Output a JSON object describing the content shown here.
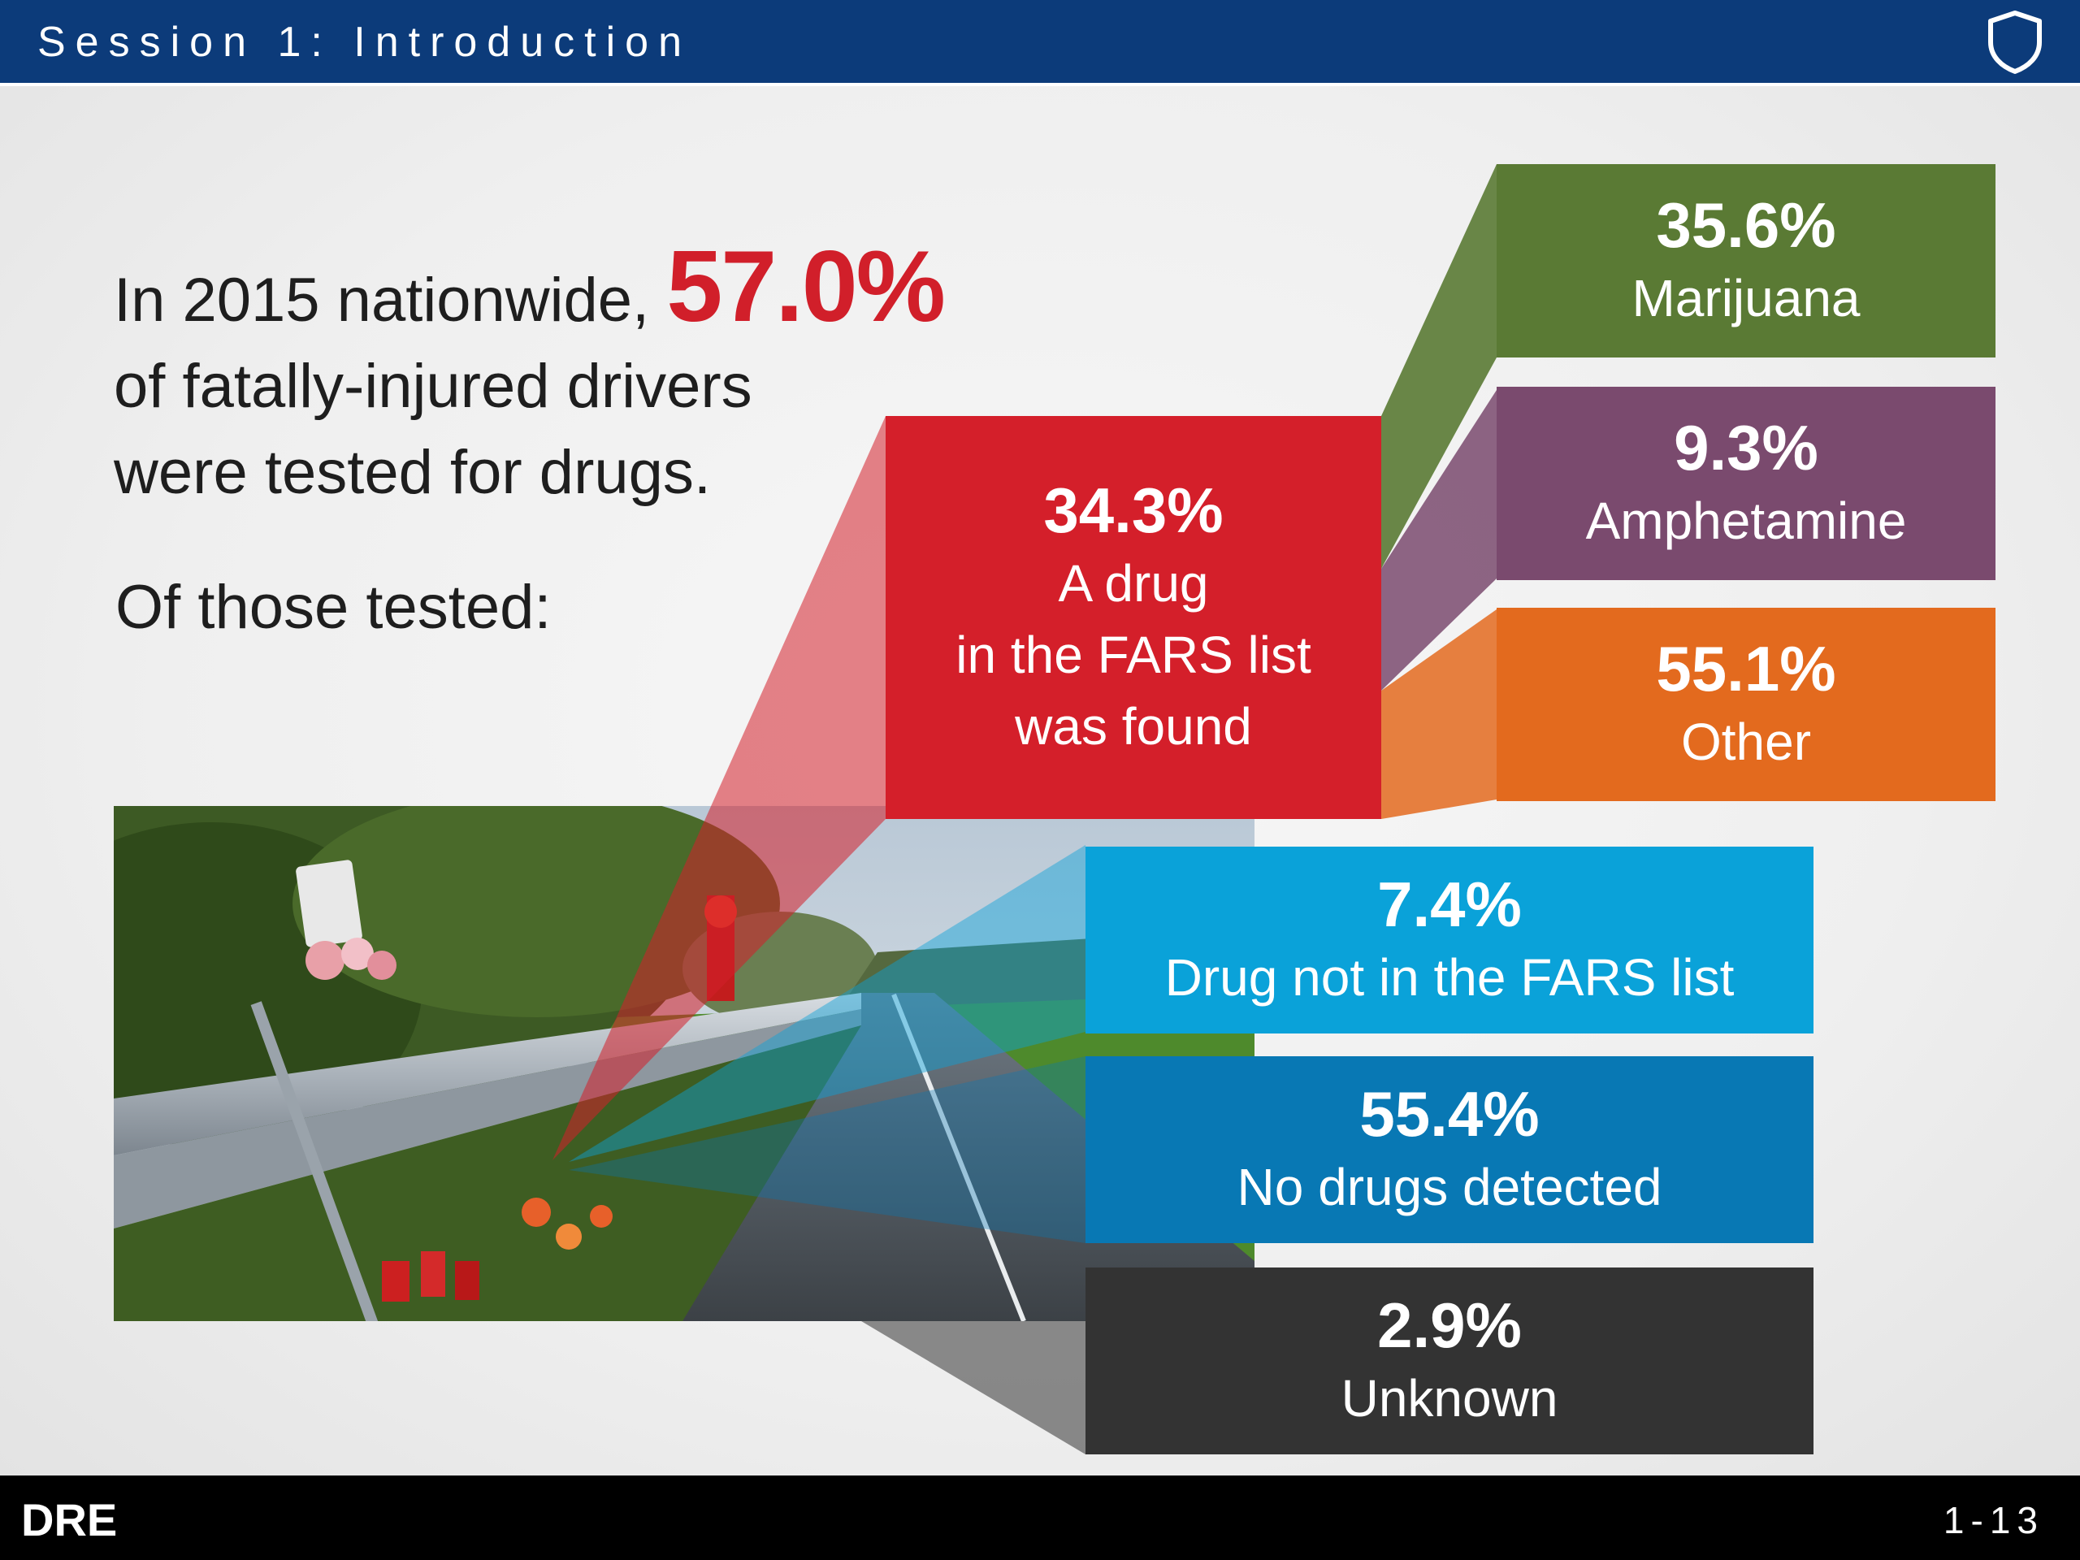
{
  "header": {
    "title": "Session 1: Introduction",
    "icon": "shield-icon"
  },
  "intro": {
    "line1_prefix": "In 2015 nationwide,",
    "highlight": "57.0%",
    "line2": "of fatally-injured drivers",
    "line3": "were tested for drugs.",
    "subhead": "Of those tested:"
  },
  "colors": {
    "red": "#d41f2a",
    "green": "#5a7a34",
    "purple": "#7a4a6e",
    "orange": "#e36a1e",
    "light_blue": "#0aa2d9",
    "blue": "#0878b4",
    "dark": "#333333",
    "header": "#0c3b7a"
  },
  "breakdown": {
    "fars": {
      "pct": "34.3%",
      "label_lines": [
        "A drug",
        "in the FARS list",
        "was found"
      ]
    },
    "fars_sub": [
      {
        "pct": "35.6%",
        "label": "Marijuana"
      },
      {
        "pct": "9.3%",
        "label": "Amphetamine"
      },
      {
        "pct": "55.1%",
        "label": "Other"
      }
    ],
    "other": [
      {
        "pct": "7.4%",
        "label": "Drug not in the FARS list"
      },
      {
        "pct": "55.4%",
        "label": "No drugs detected"
      },
      {
        "pct": "2.9%",
        "label": "Unknown"
      }
    ]
  },
  "footer": {
    "brand": "DRE",
    "page": "1-13"
  }
}
